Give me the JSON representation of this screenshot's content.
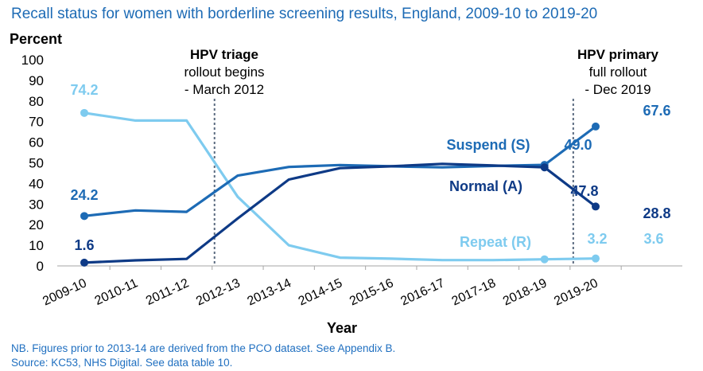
{
  "header": {
    "title": "Recall status for women with borderline screening results, England, 2009-10 to 2019-20"
  },
  "footer": {
    "note1": "NB. Figures prior to 2013-14 are derived from the PCO dataset. See Appendix B.",
    "note2": "Source: KC53, NHS Digital. See data table 10."
  },
  "chart_data": {
    "type": "line",
    "title": "Recall status for women with borderline screening results, England, 2009-10 to 2019-20",
    "xlabel": "Year",
    "ylabel": "Percent",
    "ylim": [
      0,
      100
    ],
    "yticks": [
      0,
      10,
      20,
      30,
      40,
      50,
      60,
      70,
      80,
      90,
      100
    ],
    "grid": false,
    "categories": [
      "2009-10",
      "2010-11",
      "2011-12",
      "2012-13",
      "2013-14",
      "2014-15",
      "2015-16",
      "2016-17",
      "2017-18",
      "2018-19",
      "2019-20"
    ],
    "series": [
      {
        "name": "Repeat (R)",
        "color": "#7ecbef",
        "values": [
          74.2,
          70.5,
          70.5,
          33.5,
          10.0,
          4.0,
          3.5,
          2.8,
          2.8,
          3.2,
          3.6
        ],
        "labels": [
          {
            "index": 0,
            "text": "74.2"
          },
          {
            "index": 9,
            "text": "3.2"
          },
          {
            "index": 10,
            "text": "3.6"
          }
        ]
      },
      {
        "name": "Suspend (S)",
        "color": "#1d6bb5",
        "values": [
          24.2,
          26.9,
          26.2,
          43.8,
          48.0,
          48.9,
          48.3,
          47.8,
          48.5,
          49.0,
          67.6
        ],
        "labels": [
          {
            "index": 0,
            "text": "24.2"
          },
          {
            "index": 9,
            "text": "49.0"
          },
          {
            "index": 10,
            "text": "67.6"
          }
        ]
      },
      {
        "name": "Normal (A)",
        "color": "#0e3a86",
        "values": [
          1.6,
          2.7,
          3.4,
          23.0,
          41.9,
          47.4,
          48.3,
          49.5,
          48.7,
          47.8,
          28.8
        ],
        "labels": [
          {
            "index": 0,
            "text": "1.6"
          },
          {
            "index": 9,
            "text": "47.8"
          },
          {
            "index": 10,
            "text": "28.8"
          }
        ]
      }
    ],
    "reference_lines": [
      {
        "x_between": [
          "2011-12",
          "2012-13"
        ],
        "lines": [
          "HPV triage",
          "rollout begins",
          "- March 2012"
        ]
      },
      {
        "x_between": [
          "2018-19",
          "2019-20"
        ],
        "lines": [
          "HPV primary",
          "full rollout",
          "- Dec 2019"
        ]
      }
    ]
  }
}
